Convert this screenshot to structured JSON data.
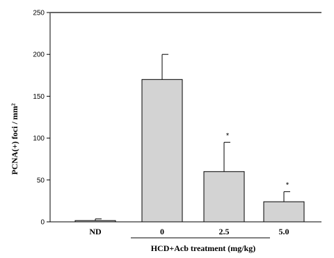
{
  "chart_data": {
    "type": "bar",
    "categories": [
      "ND",
      "0",
      "2.5",
      "5.0"
    ],
    "values": [
      1.5,
      170,
      60,
      24
    ],
    "errors": [
      2,
      30,
      35,
      12
    ],
    "significance": [
      "",
      "",
      "*",
      "*"
    ],
    "ylabel": "PCNA(+) foci / mm²",
    "xlabel": "HCD+Acb treatment (mg/kg)",
    "ylim": [
      0,
      250
    ],
    "yticks": [
      0,
      50,
      100,
      150,
      200,
      250
    ],
    "grid": false,
    "colors": {
      "bar": "#d3d3d3",
      "edge": "#000000"
    }
  }
}
